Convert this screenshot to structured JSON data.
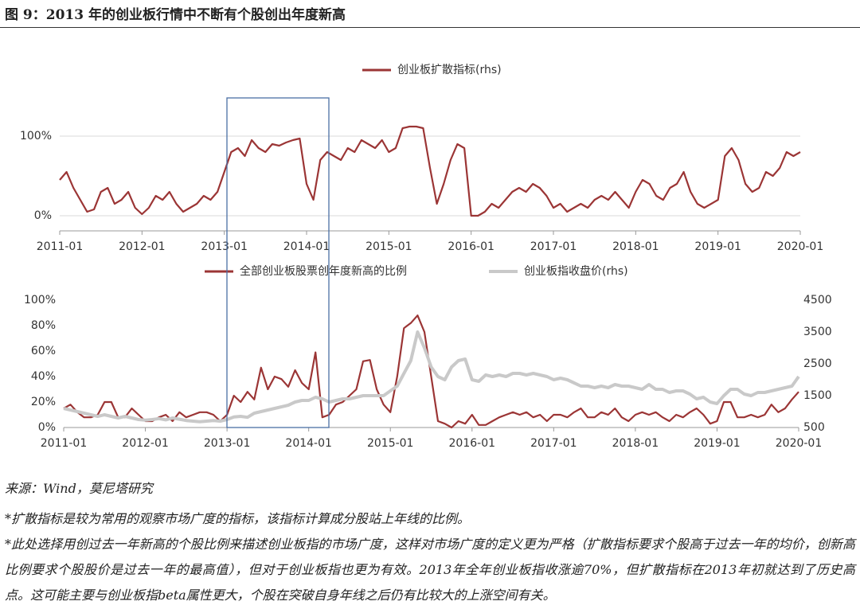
{
  "title": "图 9：2013 年的创业板行情中不断有个股创出年度新高",
  "source": "来源：Wind，莫尼塔研究",
  "notes": [
    "*扩散指标是较为常用的观察市场广度的指标，该指标计算成分股站上年线的比例。",
    "*此处选择用创过去一年新高的个股比例来描述创业板指的市场广度，这样对市场广度的定义更为严格（扩散指标要求个股高于过去一年的均价，创新高比例要求个股股价是过去一年的最高值），但对于创业板指也更为有效。2013年全年创业板指收涨逾70%，但扩散指标在2013年初就达到了历史高点。这可能主要与创业板指beta属性更大，个股在突破自身年线之后仍有比较大的上涨空间有关。"
  ],
  "chart_data": [
    {
      "type": "line",
      "legend": "top",
      "grid": true,
      "x": [
        "2011-01",
        "2011-02",
        "2011-03",
        "2011-04",
        "2011-05",
        "2011-06",
        "2011-07",
        "2011-08",
        "2011-09",
        "2011-10",
        "2011-11",
        "2011-12",
        "2012-01",
        "2012-02",
        "2012-03",
        "2012-04",
        "2012-05",
        "2012-06",
        "2012-07",
        "2012-08",
        "2012-09",
        "2012-10",
        "2012-11",
        "2012-12",
        "2013-01",
        "2013-02",
        "2013-03",
        "2013-04",
        "2013-05",
        "2013-06",
        "2013-07",
        "2013-08",
        "2013-09",
        "2013-10",
        "2013-11",
        "2013-12",
        "2014-01",
        "2014-02",
        "2014-03",
        "2014-04",
        "2014-05",
        "2014-06",
        "2014-07",
        "2014-08",
        "2014-09",
        "2014-10",
        "2014-11",
        "2014-12",
        "2015-01",
        "2015-02",
        "2015-03",
        "2015-04",
        "2015-05",
        "2015-06",
        "2015-07",
        "2015-08",
        "2015-09",
        "2015-10",
        "2015-11",
        "2015-12",
        "2016-01",
        "2016-02",
        "2016-03",
        "2016-04",
        "2016-05",
        "2016-06",
        "2016-07",
        "2016-08",
        "2016-09",
        "2016-10",
        "2016-11",
        "2016-12",
        "2017-01",
        "2017-02",
        "2017-03",
        "2017-04",
        "2017-05",
        "2017-06",
        "2017-07",
        "2017-08",
        "2017-09",
        "2017-10",
        "2017-11",
        "2017-12",
        "2018-01",
        "2018-02",
        "2018-03",
        "2018-04",
        "2018-05",
        "2018-06",
        "2018-07",
        "2018-08",
        "2018-09",
        "2018-10",
        "2018-11",
        "2018-12",
        "2019-01",
        "2019-02",
        "2019-03",
        "2019-04",
        "2019-05",
        "2019-06",
        "2019-07",
        "2019-08",
        "2019-09",
        "2019-10",
        "2019-11",
        "2019-12",
        "2020-01"
      ],
      "series": [
        {
          "name": "创业板扩散指标(rhs)",
          "color": "#9b3535",
          "values": [
            45,
            55,
            35,
            20,
            5,
            8,
            30,
            35,
            15,
            20,
            30,
            10,
            2,
            10,
            25,
            20,
            30,
            15,
            5,
            10,
            15,
            25,
            20,
            30,
            55,
            80,
            85,
            75,
            95,
            85,
            80,
            90,
            88,
            92,
            95,
            97,
            40,
            20,
            70,
            80,
            75,
            70,
            85,
            80,
            95,
            90,
            85,
            95,
            80,
            85,
            110,
            112,
            112,
            110,
            60,
            15,
            40,
            70,
            90,
            85,
            0,
            0,
            5,
            15,
            10,
            20,
            30,
            35,
            30,
            40,
            35,
            25,
            10,
            15,
            5,
            10,
            15,
            10,
            20,
            25,
            20,
            30,
            20,
            10,
            30,
            45,
            40,
            25,
            20,
            35,
            40,
            55,
            30,
            15,
            10,
            15,
            20,
            75,
            85,
            70,
            40,
            30,
            35,
            55,
            50,
            60,
            80,
            75,
            80
          ]
        }
      ],
      "xlim": [
        "2011-01",
        "2020-01"
      ],
      "xticks": [
        "2011-01",
        "2012-01",
        "2013-01",
        "2014-01",
        "2015-01",
        "2016-01",
        "2017-01",
        "2018-01",
        "2019-01",
        "2020-01"
      ],
      "ylim": [
        -19,
        149
      ],
      "yticks": [
        {
          "value": 0,
          "label": "0%"
        },
        {
          "value": 100,
          "label": "100%"
        }
      ]
    },
    {
      "type": "line",
      "legend": "top",
      "grid": false,
      "x": [
        "2011-01",
        "2011-02",
        "2011-03",
        "2011-04",
        "2011-05",
        "2011-06",
        "2011-07",
        "2011-08",
        "2011-09",
        "2011-10",
        "2011-11",
        "2011-12",
        "2012-01",
        "2012-02",
        "2012-03",
        "2012-04",
        "2012-05",
        "2012-06",
        "2012-07",
        "2012-08",
        "2012-09",
        "2012-10",
        "2012-11",
        "2012-12",
        "2013-01",
        "2013-02",
        "2013-03",
        "2013-04",
        "2013-05",
        "2013-06",
        "2013-07",
        "2013-08",
        "2013-09",
        "2013-10",
        "2013-11",
        "2013-12",
        "2014-01",
        "2014-02",
        "2014-03",
        "2014-04",
        "2014-05",
        "2014-06",
        "2014-07",
        "2014-08",
        "2014-09",
        "2014-10",
        "2014-11",
        "2014-12",
        "2015-01",
        "2015-02",
        "2015-03",
        "2015-04",
        "2015-05",
        "2015-06",
        "2015-07",
        "2015-08",
        "2015-09",
        "2015-10",
        "2015-11",
        "2015-12",
        "2016-01",
        "2016-02",
        "2016-03",
        "2016-04",
        "2016-05",
        "2016-06",
        "2016-07",
        "2016-08",
        "2016-09",
        "2016-10",
        "2016-11",
        "2016-12",
        "2017-01",
        "2017-02",
        "2017-03",
        "2017-04",
        "2017-05",
        "2017-06",
        "2017-07",
        "2017-08",
        "2017-09",
        "2017-10",
        "2017-11",
        "2017-12",
        "2018-01",
        "2018-02",
        "2018-03",
        "2018-04",
        "2018-05",
        "2018-06",
        "2018-07",
        "2018-08",
        "2018-09",
        "2018-10",
        "2018-11",
        "2018-12",
        "2019-01",
        "2019-02",
        "2019-03",
        "2019-04",
        "2019-05",
        "2019-06",
        "2019-07",
        "2019-08",
        "2019-09",
        "2019-10",
        "2019-11",
        "2019-12",
        "2020-01"
      ],
      "series": [
        {
          "name": "全部创业板股票创年度新高的比例",
          "color": "#9b3535",
          "values": [
            15,
            18,
            12,
            8,
            8,
            10,
            20,
            20,
            8,
            8,
            15,
            10,
            5,
            5,
            8,
            10,
            5,
            12,
            8,
            10,
            12,
            12,
            10,
            5,
            10,
            25,
            20,
            28,
            22,
            47,
            30,
            40,
            38,
            32,
            45,
            35,
            30,
            59,
            8,
            10,
            18,
            20,
            25,
            30,
            52,
            53,
            30,
            18,
            12,
            40,
            78,
            82,
            88,
            75,
            40,
            5,
            3,
            0,
            5,
            3,
            10,
            2,
            2,
            5,
            8,
            10,
            12,
            10,
            12,
            8,
            10,
            5,
            10,
            10,
            8,
            12,
            15,
            8,
            8,
            12,
            10,
            15,
            8,
            5,
            10,
            12,
            10,
            12,
            8,
            5,
            10,
            8,
            12,
            15,
            10,
            3,
            5,
            20,
            20,
            8,
            8,
            10,
            8,
            10,
            18,
            12,
            15,
            22,
            28
          ]
        },
        {
          "name": "创业板指收盘价(rhs)",
          "color": "#c9c9c9",
          "axis": "y2",
          "values": [
            1100,
            1050,
            1000,
            950,
            900,
            850,
            900,
            850,
            800,
            850,
            800,
            750,
            730,
            750,
            780,
            740,
            800,
            760,
            720,
            700,
            680,
            700,
            720,
            700,
            750,
            830,
            850,
            820,
            950,
            1000,
            1050,
            1100,
            1150,
            1200,
            1300,
            1350,
            1350,
            1450,
            1400,
            1300,
            1350,
            1400,
            1400,
            1450,
            1500,
            1500,
            1500,
            1500,
            1650,
            1800,
            2200,
            2600,
            3500,
            3000,
            2400,
            2100,
            2000,
            2400,
            2600,
            2650,
            2000,
            1950,
            2150,
            2100,
            2150,
            2100,
            2200,
            2200,
            2150,
            2200,
            2150,
            2100,
            2000,
            2050,
            2000,
            1900,
            1800,
            1800,
            1750,
            1800,
            1750,
            1850,
            1800,
            1800,
            1750,
            1700,
            1850,
            1700,
            1700,
            1600,
            1650,
            1650,
            1550,
            1400,
            1450,
            1300,
            1250,
            1500,
            1700,
            1700,
            1550,
            1500,
            1600,
            1600,
            1650,
            1700,
            1750,
            1800,
            2100
          ]
        }
      ],
      "xlim": [
        "2011-01",
        "2020-01"
      ],
      "xticks": [
        "2011-01",
        "2012-01",
        "2013-01",
        "2014-01",
        "2015-01",
        "2016-01",
        "2017-01",
        "2018-01",
        "2019-01",
        "2020-01"
      ],
      "ylim": [
        0,
        100
      ],
      "yticks": [
        {
          "value": 0,
          "label": "0%"
        },
        {
          "value": 20,
          "label": "20%"
        },
        {
          "value": 40,
          "label": "40%"
        },
        {
          "value": 60,
          "label": "60%"
        },
        {
          "value": 80,
          "label": "80%"
        },
        {
          "value": 100,
          "label": "100%"
        }
      ],
      "y2lim": [
        500,
        4500
      ],
      "y2ticks": [
        500,
        1500,
        2500,
        3500,
        4500
      ]
    }
  ]
}
